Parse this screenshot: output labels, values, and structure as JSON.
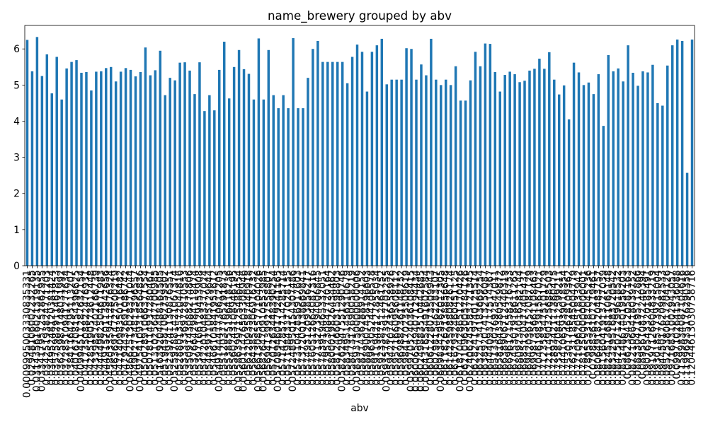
{
  "chart_data": {
    "type": "bar",
    "title": "name_brewery grouped by abv",
    "xlabel": "abv",
    "ylim": [
      0,
      6.65
    ],
    "yticks": [
      0,
      1,
      2,
      3,
      4,
      5,
      6
    ],
    "grid": false,
    "legend": "none",
    "color": "#1f77b4",
    "categories": [
      "0.0009995003330835331",
      "0.02948106002232265",
      "0.031435616021319135",
      "0.033417957252862955",
      "0.03425193824771203",
      "0.03495248120381424",
      "0.03575982911467853",
      "0.03625987148031992",
      "0.03728510941277634",
      "0.03841164295113207",
      "0.04016708154396625",
      "0.040994511287632154",
      "0.04173508822476931",
      "0.04285190573612448",
      "0.04339857402166739",
      "0.04444982504671983",
      "0.04491570113942656",
      "0.045803359412876324",
      "0.04636914727500219",
      "0.04714098350116482",
      "0.04794432691086742",
      "0.048662513028371044",
      "0.04902734813396557",
      "0.049754109318564836",
      "0.05002891066371554",
      "0.05078114937280461",
      "0.05131025647700985",
      "0.051639204488163505",
      "0.05194381062759302",
      "0.05239741130876551",
      "0.052597881421067374",
      "0.05288013572044816",
      "0.05333336972810553",
      "0.053509143088274806",
      "0.05376642984118474",
      "0.05397166129453908",
      "0.05422010483377024",
      "0.05443971005129644",
      "0.05466105841953612",
      "0.054914447730612205",
      "0.05512037765291873",
      "0.05538855196418236",
      "0.05560243108946195",
      "0.055863997125486454",
      "0.056011476503308946",
      "0.05622093587440918",
      "0.05643852306916732",
      "0.056613085577104026",
      "0.056826470910553985",
      "0.05694139927558807",
      "0.05701263448390254",
      "0.057089460179241165",
      "0.05714285714285714",
      "0.05719843377028155",
      "0.057248950154307486",
      "0.05731042856917603",
      "0.05737200138669841",
      "0.05749312093856217",
      "0.05760512664087316",
      "0.05771327394006845",
      "0.05783919465332051",
      "0.05795230847720164",
      "0.05800019826434462",
      "0.05812466031598803",
      "0.058262947551290746",
      "0.05834951456310679",
      "0.05847312690058219",
      "0.058593750000000006",
      "0.05871436288914152",
      "0.05889007458196603",
      "0.05896305244706578",
      "0.05911942127855034",
      "0.05923387512461752",
      "0.059357823917702255",
      "0.05942107436558926",
      "0.05957166095608112",
      "0.05969882361148752",
      "0.05984170235509619",
      "0.059970524036108415",
      "0.060065494071294434",
      "0.060249883510442685",
      "0.060431655491607584",
      "0.06061228073509943",
      "0.06079815462283107",
      "0.060983429567012305",
      "0.06118262138856648",
      "0.06142359880826174",
      "0.06167932460451125",
      "0.061870428651270426",
      "0.06210963005784126",
      "0.062406245583721345",
      "0.06282419740125514",
      "0.06325734183669254",
      "0.06389207413256087",
      "0.06444093717514367",
      "0.06513307692547011",
      "0.06581643380549872",
      "0.06638906712440319",
      "0.06696121558316753",
      "0.06745307918611265",
      "0.06809234016582144",
      "0.06885120477405431",
      "0.06942036152087129",
      "0.06998735661108463",
      "0.07046198391567021",
      "0.07123583475101729",
      "0.07211490325688503",
      "0.07289342117360475",
      "0.07358208412599211",
      "0.07441065939018354",
      "0.07530174628109362",
      "0.07623118545004779",
      "0.07710962051833942",
      "0.07812500000000001",
      "0.07895533187045236",
      "0.0798836107219461",
      "0.08064918220483757",
      "0.08156041913727039",
      "0.08245136811065148",
      "0.08332951683720542",
      "0.08425071299618532",
      "0.08514867401956203",
      "0.0862394520587163",
      "0.08721066418039752",
      "0.08833047195712866",
      "0.0895610872240394",
      "0.09076543320185491",
      "0.09197126604833219",
      "0.09301857739215004",
      "0.09445017620982533",
      "0.09525380617204126",
      "0.09716831002943057",
      "0.0997102641536088",
      "0.11599834087104616",
      "0.11996935176290356",
      "0.12044613030758716"
    ],
    "values": [
      6.25,
      5.38,
      6.33,
      5.25,
      5.85,
      4.77,
      5.78,
      4.6,
      5.46,
      5.64,
      5.69,
      5.34,
      5.36,
      4.85,
      5.37,
      5.38,
      5.47,
      5.5,
      5.1,
      5.37,
      5.47,
      5.42,
      5.24,
      5.36,
      6.04,
      5.27,
      5.41,
      5.95,
      4.72,
      5.2,
      5.13,
      5.62,
      5.63,
      5.4,
      4.75,
      5.63,
      4.28,
      4.72,
      4.3,
      5.42,
      6.2,
      4.63,
      5.5,
      5.97,
      5.44,
      5.31,
      4.6,
      6.29,
      4.6,
      5.97,
      4.72,
      4.36,
      4.72,
      4.36,
      6.3,
      4.36,
      4.36,
      5.2,
      6.0,
      6.22,
      5.64,
      5.64,
      5.64,
      5.64,
      5.64,
      5.05,
      5.78,
      6.12,
      5.92,
      4.82,
      5.92,
      6.1,
      6.28,
      5.02,
      5.15,
      5.15,
      5.15,
      6.02,
      6.0,
      5.15,
      5.57,
      5.27,
      6.28,
      5.15,
      5.0,
      5.15,
      5.0,
      5.52,
      4.57,
      4.57,
      5.13,
      5.92,
      5.52,
      6.15,
      6.14,
      5.36,
      4.82,
      5.28,
      5.37,
      5.3,
      5.08,
      5.12,
      5.4,
      5.45,
      5.73,
      5.45,
      5.91,
      5.15,
      4.74,
      4.99,
      4.05,
      5.62,
      5.35,
      5.0,
      5.07,
      4.75,
      5.3,
      3.87,
      5.83,
      5.38,
      5.46,
      5.1,
      6.1,
      5.34,
      4.98,
      5.38,
      5.35,
      5.56,
      4.5,
      4.43,
      5.54,
      6.1,
      6.26,
      6.22,
      2.57,
      6.26
    ]
  }
}
